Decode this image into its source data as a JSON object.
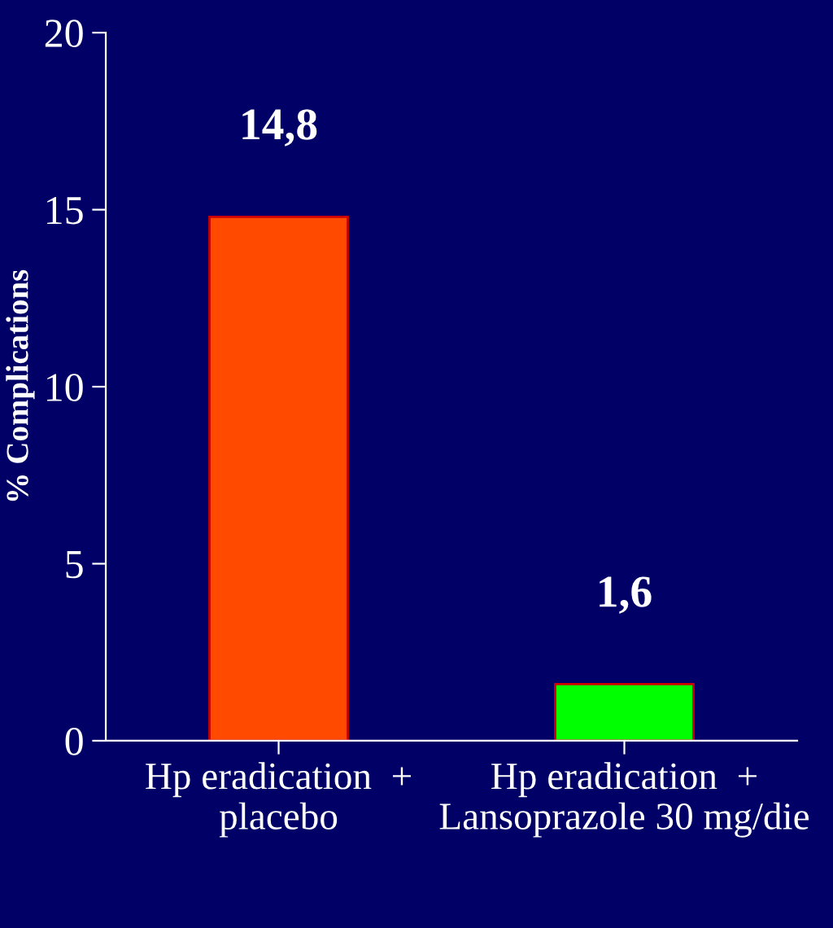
{
  "chart_data": {
    "type": "bar",
    "categories": [
      "Hp eradication  +\nplacebo",
      "Hp eradication  +\nLansoprazole 30 mg/die"
    ],
    "values": [
      14.8,
      1.6
    ],
    "colors": [
      "#ff4a00",
      "#00ff00"
    ],
    "value_labels": [
      "14,8",
      "1,6"
    ],
    "ylabel": "% Complications",
    "ylim": [
      0,
      20
    ],
    "yticks": [
      0,
      5,
      10,
      15,
      20
    ],
    "grid": false
  }
}
